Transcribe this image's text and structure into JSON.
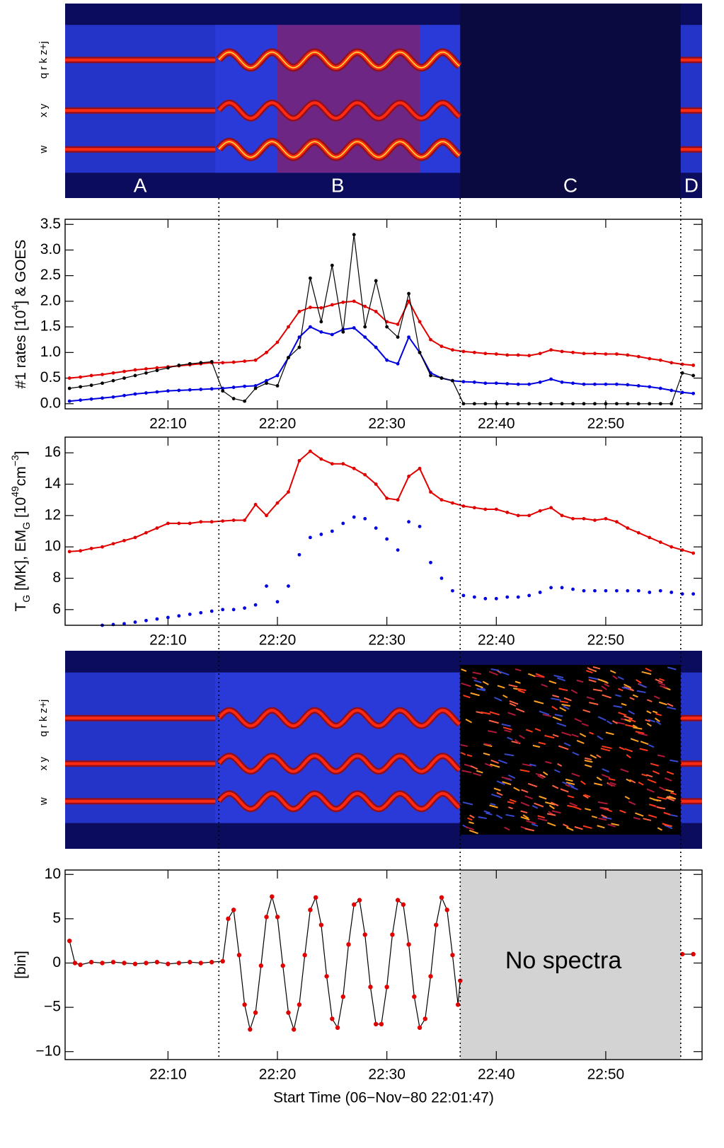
{
  "chart_data": [
    {
      "type": "spectrogram",
      "regions": [
        "A",
        "B",
        "C",
        "D"
      ],
      "line_labels": [
        "w",
        "x y",
        "q r k z+j"
      ]
    },
    {
      "type": "line",
      "ylabel_parts": [
        "#1 rates [10",
        "4",
        "] & GOES"
      ],
      "x": [
        1,
        2,
        3,
        4,
        5,
        6,
        7,
        8,
        9,
        10,
        11,
        12,
        13,
        14,
        15,
        16,
        17,
        18,
        19,
        20,
        21,
        22,
        23,
        24,
        25,
        26,
        27,
        28,
        29,
        30,
        31,
        32,
        33,
        34,
        35,
        36,
        37,
        38,
        39,
        40,
        41,
        42,
        43,
        44,
        45,
        46,
        47,
        48,
        49,
        50,
        51,
        52,
        53,
        54,
        55,
        56,
        57,
        58
      ],
      "xlim": [
        0.6,
        58.8
      ],
      "xticks": [
        {
          "value": 10,
          "label": "22:10"
        },
        {
          "value": 20,
          "label": "22:20"
        },
        {
          "value": 30,
          "label": "22:30"
        },
        {
          "value": 40,
          "label": "22:40"
        },
        {
          "value": 50,
          "label": "22:50"
        }
      ],
      "ylim": [
        -0.1,
        3.6
      ],
      "yticks": [
        {
          "value": 0,
          "label": "0.0"
        },
        {
          "value": 0.5,
          "label": "0.5"
        },
        {
          "value": 1,
          "label": "1.0"
        },
        {
          "value": 1.5,
          "label": "1.5"
        },
        {
          "value": 2,
          "label": "2.0"
        },
        {
          "value": 2.5,
          "label": "2.5"
        },
        {
          "value": 3,
          "label": "3.0"
        },
        {
          "value": 3.5,
          "label": "3.5"
        }
      ],
      "series": [
        {
          "color": "#e00000",
          "style": "line+dots",
          "values": [
            0.5,
            0.52,
            0.55,
            0.57,
            0.6,
            0.63,
            0.66,
            0.68,
            0.7,
            0.72,
            0.74,
            0.76,
            0.78,
            0.8,
            0.8,
            0.81,
            0.83,
            0.85,
            1.0,
            1.2,
            1.5,
            1.8,
            1.88,
            1.87,
            1.93,
            1.98,
            2.0,
            1.9,
            1.8,
            1.6,
            1.55,
            2.0,
            1.6,
            1.25,
            1.12,
            1.05,
            1.02,
            1.0,
            0.98,
            0.97,
            0.95,
            0.95,
            0.94,
            0.98,
            1.05,
            1.02,
            1.0,
            0.98,
            0.98,
            0.97,
            0.97,
            0.95,
            0.92,
            0.88,
            0.85,
            0.8,
            0.77,
            0.75
          ]
        },
        {
          "color": "#0000e0",
          "style": "line+dots",
          "values": [
            0.05,
            0.07,
            0.09,
            0.11,
            0.13,
            0.16,
            0.19,
            0.21,
            0.23,
            0.25,
            0.26,
            0.27,
            0.28,
            0.29,
            0.3,
            0.32,
            0.34,
            0.35,
            0.45,
            0.55,
            0.9,
            1.3,
            1.5,
            1.4,
            1.35,
            1.45,
            1.48,
            1.3,
            1.1,
            0.85,
            0.78,
            1.3,
            1.0,
            0.6,
            0.5,
            0.45,
            0.43,
            0.42,
            0.4,
            0.4,
            0.39,
            0.38,
            0.38,
            0.42,
            0.48,
            0.42,
            0.4,
            0.38,
            0.38,
            0.38,
            0.38,
            0.37,
            0.35,
            0.33,
            0.3,
            0.26,
            0.22,
            0.2
          ]
        },
        {
          "color": "#000000",
          "style": "line+dots",
          "values": [
            0.3,
            0.33,
            0.36,
            0.4,
            0.45,
            0.5,
            0.55,
            0.6,
            0.65,
            0.7,
            0.75,
            0.78,
            0.8,
            0.82,
            0.25,
            0.1,
            0.05,
            0.3,
            0.4,
            0.35,
            0.9,
            1.1,
            2.45,
            1.6,
            2.7,
            1.4,
            3.3,
            1.5,
            2.4,
            1.5,
            1.3,
            2.15,
            1.0,
            0.55,
            0.5,
            0.45,
            0,
            0,
            0,
            0,
            0,
            0,
            0,
            0,
            0,
            0,
            0,
            0,
            0,
            0,
            0,
            0,
            0,
            0,
            0,
            0,
            0.6,
            0.55
          ]
        }
      ]
    },
    {
      "type": "line",
      "ylabel_parts": [
        "T",
        "G",
        " [MK], EM",
        "G",
        " [10",
        "49",
        "cm",
        "−3",
        "]"
      ],
      "x": [
        1,
        2,
        3,
        4,
        5,
        6,
        7,
        8,
        9,
        10,
        11,
        12,
        13,
        14,
        15,
        16,
        17,
        18,
        19,
        20,
        21,
        22,
        23,
        24,
        25,
        26,
        27,
        28,
        29,
        30,
        31,
        32,
        33,
        34,
        35,
        36,
        37,
        38,
        39,
        40,
        41,
        42,
        43,
        44,
        45,
        46,
        47,
        48,
        49,
        50,
        51,
        52,
        53,
        54,
        55,
        56,
        57,
        58
      ],
      "xlim": [
        0.6,
        58.8
      ],
      "xticks": [
        {
          "value": 10,
          "label": "22:10"
        },
        {
          "value": 20,
          "label": "22:20"
        },
        {
          "value": 30,
          "label": "22:30"
        },
        {
          "value": 40,
          "label": "22:40"
        },
        {
          "value": 50,
          "label": "22:50"
        }
      ],
      "ylim": [
        5,
        17
      ],
      "yticks": [
        6,
        8,
        10,
        12,
        14,
        16
      ],
      "series": [
        {
          "color": "#e00000",
          "style": "line+dots",
          "values": [
            9.7,
            9.75,
            9.9,
            10.0,
            10.2,
            10.4,
            10.6,
            10.9,
            11.2,
            11.5,
            11.5,
            11.5,
            11.6,
            11.6,
            11.65,
            11.7,
            11.7,
            12.7,
            12.0,
            12.8,
            13.5,
            15.5,
            16.1,
            15.6,
            15.3,
            15.3,
            15.0,
            14.6,
            14.0,
            13.1,
            13.0,
            14.5,
            15.0,
            13.5,
            13.0,
            12.8,
            12.6,
            12.5,
            12.4,
            12.4,
            12.2,
            12.0,
            12.0,
            12.3,
            12.5,
            12.0,
            11.8,
            11.8,
            11.7,
            11.8,
            11.6,
            11.2,
            10.9,
            10.6,
            10.3,
            10.0,
            9.8,
            9.6
          ]
        },
        {
          "color": "#0000e0",
          "style": "dots",
          "values": [
            null,
            null,
            null,
            5.0,
            5.05,
            5.1,
            5.2,
            5.3,
            5.4,
            5.5,
            5.6,
            5.7,
            5.8,
            5.9,
            6.0,
            6.0,
            6.1,
            6.3,
            7.5,
            6.5,
            7.5,
            9.5,
            10.6,
            10.8,
            11.0,
            11.5,
            11.9,
            11.8,
            11.2,
            10.5,
            9.8,
            11.6,
            11.3,
            9.0,
            8.0,
            7.2,
            6.9,
            6.8,
            6.7,
            6.7,
            6.8,
            6.8,
            6.9,
            7.1,
            7.4,
            7.4,
            7.3,
            7.2,
            7.2,
            7.2,
            7.2,
            7.2,
            7.2,
            7.1,
            7.2,
            7.1,
            7.0,
            7.0
          ]
        }
      ]
    },
    {
      "type": "spectrogram",
      "line_labels": [
        "w",
        "x y",
        "q r k z+j"
      ]
    },
    {
      "type": "line",
      "ylabel_parts": [
        "[bin]"
      ],
      "x": [
        1,
        1.5,
        2,
        3,
        4,
        5,
        6,
        7,
        8,
        9,
        10,
        11,
        12,
        13,
        14,
        15,
        15.5,
        16,
        16.5,
        17,
        17.5,
        18,
        18.5,
        19,
        19.5,
        20,
        20.5,
        21,
        21.5,
        22,
        22.5,
        23,
        23.5,
        24,
        24.5,
        25,
        25.5,
        26,
        26.5,
        27,
        27.5,
        28,
        28.5,
        29,
        29.5,
        30,
        30.5,
        31,
        31.5,
        32,
        32.5,
        33,
        33.5,
        34,
        34.5,
        35,
        35.5,
        36,
        36.5,
        36.7,
        46.8,
        57,
        58
      ],
      "xlim": [
        0.6,
        58.8
      ],
      "xticks": [
        {
          "value": 10,
          "label": "22:10"
        },
        {
          "value": 20,
          "label": "22:20"
        },
        {
          "value": 30,
          "label": "22:30"
        },
        {
          "value": 40,
          "label": "22:40"
        },
        {
          "value": 50,
          "label": "22:50"
        }
      ],
      "ylim": [
        -10.9,
        10.5
      ],
      "yticks": [
        {
          "value": -10,
          "label": "−10"
        },
        {
          "value": -5,
          "label": "−5"
        },
        0,
        5,
        10
      ],
      "shade": {
        "x0": 36.7,
        "x1": 56.85,
        "color": "#d3d3d3",
        "label": "No spectra"
      },
      "xlabel": "Start Time (06−Nov−80 22:01:47)",
      "series": [
        {
          "color": "#000000",
          "marker_color": "#e00000",
          "style": "line+dots",
          "values": [
            2.5,
            0,
            -0.2,
            0.1,
            0,
            0.1,
            0,
            -0.1,
            0,
            0.1,
            -0.1,
            0,
            0.1,
            0,
            0.1,
            0.2,
            5.0,
            6.0,
            0.9,
            -4.7,
            -7.5,
            -5.6,
            -0.3,
            5.2,
            7.5,
            5.2,
            -0.3,
            -5.6,
            -7.5,
            -4.7,
            0.9,
            6.0,
            7.4,
            4.3,
            -1.5,
            -6.3,
            -7.3,
            -3.8,
            2.1,
            6.6,
            7.1,
            3.2,
            -2.7,
            -6.9,
            -6.9,
            -2.7,
            3.2,
            7.1,
            6.6,
            2.1,
            -3.8,
            -7.3,
            -6.3,
            -1.5,
            4.3,
            7.4,
            6.0,
            0.9,
            -4.7,
            -2.0,
            null,
            1.0,
            1.0
          ]
        }
      ]
    }
  ],
  "boundaries": [
    14.65,
    36.7,
    56.85
  ]
}
